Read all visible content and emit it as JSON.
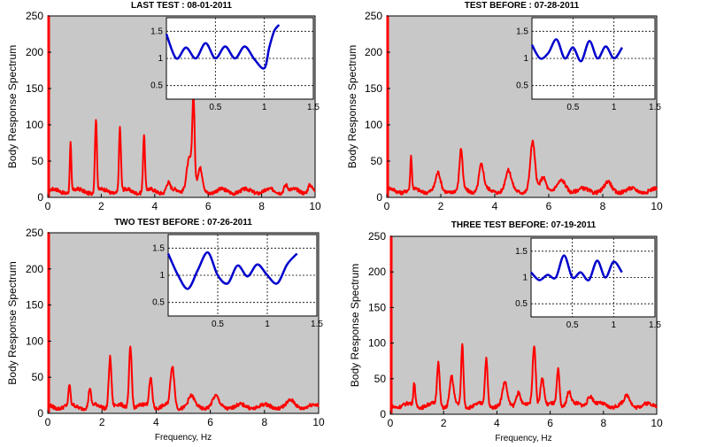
{
  "figure": {
    "colors": {
      "main_bg": "#c8c8c8",
      "spectrum": "#ff0000",
      "inset": "#0000cc",
      "inset_bg": "#ffffff"
    }
  },
  "chart_data": [
    {
      "type": "line",
      "title": "LAST TEST : 08-01-2011",
      "ylabel": "Body Response Spectrum",
      "xlabel": "",
      "xlim": [
        0,
        10
      ],
      "ylim": [
        0,
        250
      ],
      "xticks": [
        "0",
        "2",
        "4",
        "6",
        "8",
        "10"
      ],
      "yticks": [
        "0",
        "50",
        "100",
        "150",
        "200",
        "250"
      ],
      "baseline": 6,
      "peaks": [
        [
          0.85,
          68,
          0.04
        ],
        [
          1.8,
          100,
          0.05
        ],
        [
          2.7,
          88,
          0.05
        ],
        [
          3.6,
          78,
          0.05
        ],
        [
          4.5,
          12,
          0.1
        ],
        [
          5.45,
          115,
          0.06
        ],
        [
          5.3,
          48,
          0.15
        ],
        [
          5.7,
          30,
          0.12
        ],
        [
          8.9,
          10,
          0.1
        ],
        [
          9.8,
          10,
          0.1
        ]
      ],
      "inset": {
        "xlim": [
          0,
          1.5
        ],
        "ylim": [
          0.25,
          1.75
        ],
        "xticks": [
          "0.5",
          "1",
          "1.5"
        ],
        "yticks": [
          "0.5",
          "1",
          "1.5"
        ],
        "x": [
          0.0,
          0.1,
          0.2,
          0.3,
          0.4,
          0.5,
          0.6,
          0.7,
          0.8,
          0.9,
          1.0,
          1.05,
          1.1,
          1.15
        ],
        "y": [
          1.45,
          1.0,
          1.2,
          1.0,
          1.28,
          1.0,
          1.22,
          1.0,
          1.22,
          0.98,
          0.82,
          1.2,
          1.5,
          1.62
        ]
      }
    },
    {
      "type": "line",
      "title": "TEST BEFORE : 07-28-2011",
      "ylabel": "Body Response Spectrum",
      "xlabel": "",
      "xlim": [
        0,
        10
      ],
      "ylim": [
        0,
        250
      ],
      "xticks": [
        "0",
        "2",
        "4",
        "6",
        "8",
        "10"
      ],
      "yticks": [
        "0",
        "50",
        "100",
        "150",
        "200",
        "250"
      ],
      "baseline": 7,
      "peaks": [
        [
          0.9,
          45,
          0.04
        ],
        [
          1.9,
          22,
          0.12
        ],
        [
          2.75,
          55,
          0.08
        ],
        [
          3.5,
          35,
          0.12
        ],
        [
          4.5,
          25,
          0.15
        ],
        [
          5.4,
          65,
          0.12
        ],
        [
          5.8,
          20,
          0.15
        ],
        [
          6.5,
          12,
          0.2
        ],
        [
          8.2,
          10,
          0.15
        ]
      ],
      "inset": {
        "xlim": [
          0,
          1.5
        ],
        "ylim": [
          0.25,
          1.75
        ],
        "xticks": [
          "0.5",
          "1",
          "1.5"
        ],
        "yticks": [
          "0.5",
          "1",
          "1.5"
        ],
        "x": [
          0.0,
          0.1,
          0.2,
          0.3,
          0.4,
          0.5,
          0.6,
          0.7,
          0.8,
          0.9,
          1.0,
          1.1
        ],
        "y": [
          1.25,
          1.0,
          1.1,
          1.35,
          1.0,
          1.2,
          0.95,
          1.32,
          1.0,
          1.22,
          1.0,
          1.2
        ]
      }
    },
    {
      "type": "line",
      "title": "TWO TEST BEFORE : 07-26-2011",
      "ylabel": "Body Response Spectrum",
      "xlabel": "Frequency, Hz",
      "xlim": [
        0,
        10
      ],
      "ylim": [
        0,
        250
      ],
      "xticks": [
        "0",
        "2",
        "4",
        "6",
        "8",
        "10"
      ],
      "yticks": [
        "0",
        "50",
        "100",
        "150",
        "200",
        "250"
      ],
      "baseline": 7,
      "peaks": [
        [
          0.8,
          28,
          0.05
        ],
        [
          1.55,
          25,
          0.06
        ],
        [
          2.3,
          70,
          0.07
        ],
        [
          3.05,
          85,
          0.07
        ],
        [
          3.8,
          40,
          0.08
        ],
        [
          4.6,
          55,
          0.1
        ],
        [
          5.3,
          12,
          0.15
        ],
        [
          6.2,
          12,
          0.15
        ],
        [
          9.0,
          6,
          0.2
        ]
      ],
      "inset": {
        "xlim": [
          0,
          1.5
        ],
        "ylim": [
          0.25,
          1.75
        ],
        "xticks": [
          "0.5",
          "1",
          "1.5"
        ],
        "yticks": [
          "0.5",
          "1",
          "1.5"
        ],
        "x": [
          0.0,
          0.1,
          0.2,
          0.3,
          0.4,
          0.5,
          0.6,
          0.7,
          0.8,
          0.9,
          1.0,
          1.1,
          1.2,
          1.3
        ],
        "y": [
          1.4,
          1.0,
          0.75,
          1.1,
          1.42,
          1.0,
          0.85,
          1.18,
          0.98,
          1.2,
          1.0,
          0.85,
          1.2,
          1.4
        ]
      }
    },
    {
      "type": "line",
      "title": "THREE TEST BEFORE:   07-19-2011",
      "ylabel": "Body Response Spectrum",
      "xlabel": "Frequency, Hz",
      "xlim": [
        0,
        10
      ],
      "ylim": [
        0,
        250
      ],
      "xticks": [
        "0",
        "2",
        "4",
        "6",
        "8",
        "10"
      ],
      "yticks": [
        "0",
        "50",
        "100",
        "150",
        "200",
        "250"
      ],
      "baseline": 10,
      "peaks": [
        [
          0.9,
          32,
          0.05
        ],
        [
          1.8,
          60,
          0.07
        ],
        [
          2.3,
          40,
          0.1
        ],
        [
          2.7,
          85,
          0.06
        ],
        [
          3.6,
          65,
          0.07
        ],
        [
          4.3,
          30,
          0.12
        ],
        [
          4.8,
          20,
          0.12
        ],
        [
          5.4,
          85,
          0.08
        ],
        [
          5.7,
          40,
          0.1
        ],
        [
          6.3,
          50,
          0.07
        ],
        [
          6.7,
          20,
          0.12
        ],
        [
          7.5,
          15,
          0.15
        ],
        [
          8.9,
          12,
          0.15
        ]
      ],
      "inset": {
        "xlim": [
          0,
          1.5
        ],
        "ylim": [
          0.25,
          1.75
        ],
        "xticks": [
          "0.5",
          "1",
          "1.5"
        ],
        "yticks": [
          "0.5",
          "1",
          "1.5"
        ],
        "x": [
          0.0,
          0.1,
          0.2,
          0.3,
          0.4,
          0.5,
          0.6,
          0.7,
          0.8,
          0.9,
          1.0,
          1.1
        ],
        "y": [
          1.1,
          0.95,
          1.05,
          1.0,
          1.42,
          1.0,
          1.1,
          0.95,
          1.32,
          1.0,
          1.3,
          1.1
        ]
      }
    }
  ]
}
